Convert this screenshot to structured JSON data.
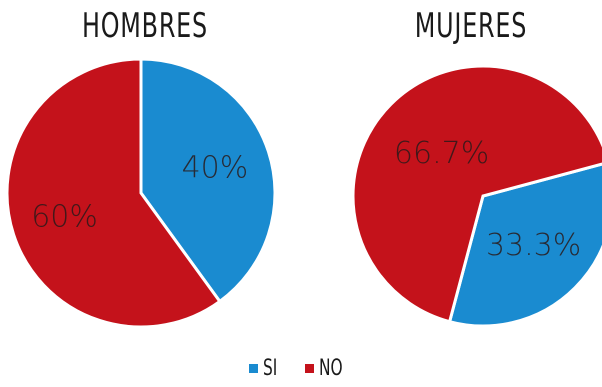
{
  "colors": {
    "si": "#1a8bd0",
    "no": "#c4121b",
    "slice_text": "#2a1a1a"
  },
  "chart_data": [
    {
      "type": "pie",
      "title": "HOMBRES",
      "slices": [
        {
          "series": "SI",
          "value": 40,
          "label": "40%"
        },
        {
          "series": "NO",
          "value": 60,
          "label": "60%"
        }
      ]
    },
    {
      "type": "pie",
      "title": "MUJERES",
      "slices": [
        {
          "series": "SI",
          "value": 33.3,
          "label": "33.3%"
        },
        {
          "series": "NO",
          "value": 66.7,
          "label": "66.7%"
        }
      ]
    }
  ],
  "legend": {
    "items": [
      {
        "name": "SI"
      },
      {
        "name": "NO"
      }
    ],
    "placement": "bottom"
  }
}
